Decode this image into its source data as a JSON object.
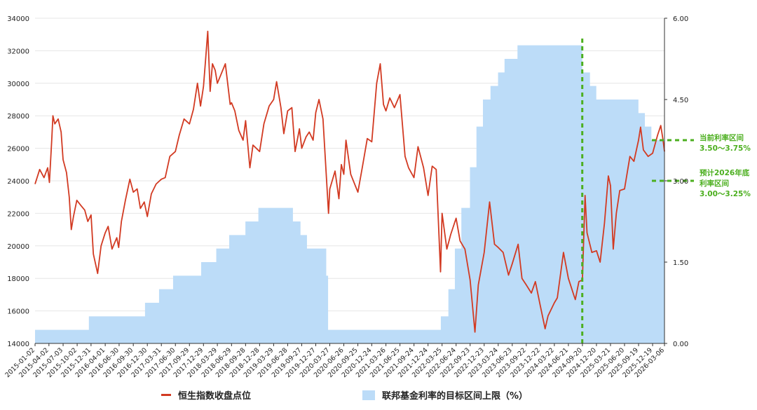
{
  "chart_data": {
    "type": "line",
    "title": "",
    "x_range": [
      "2015-01-02",
      "2026-03-06"
    ],
    "x_ticks": [
      "2015-01-02",
      "2015-04-02",
      "2015-07-03",
      "2015-10-02",
      "2015-12-31",
      "2016-04-01",
      "2016-06-30",
      "2016-09-30",
      "2016-12-30",
      "2017-03-31",
      "2017-06-30",
      "2017-09-29",
      "2017-12-29",
      "2018-03-29",
      "2018-06-29",
      "2018-09-28",
      "2018-12-28",
      "2019-03-29",
      "2019-06-28",
      "2019-09-27",
      "2019-12-27",
      "2020-03-27",
      "2020-06-26",
      "2020-09-25",
      "2020-12-24",
      "2021-03-26",
      "2021-06-25",
      "2021-09-24",
      "2021-12-24",
      "2022-03-25",
      "2022-06-24",
      "2022-09-23",
      "2022-12-23",
      "2023-03-24",
      "2023-06-23",
      "2023-09-22",
      "2023-12-22",
      "2024-03-22",
      "2024-06-21",
      "2024-09-20",
      "2024-12-20",
      "2025-03-21",
      "2025-06-20",
      "2025-09-19",
      "2025-12-19",
      "2026-03-06"
    ],
    "y_left": {
      "min": 14000,
      "max": 34000,
      "ticks": [
        "14000",
        "16000",
        "18000",
        "20000",
        "22000",
        "24000",
        "26000",
        "28000",
        "30000",
        "32000",
        "34000"
      ]
    },
    "y_right": {
      "min": 0,
      "max": 6,
      "ticks": [
        "0.00",
        "1.50",
        "3.00",
        "4.50",
        "6.00"
      ]
    },
    "grid": "horizontal",
    "legend_position": "bottom",
    "series": [
      {
        "name": "恒生指数收盘点位",
        "kind": "line",
        "axis": "left",
        "color": "#d23a22",
        "points": [
          [
            "2015-01-02",
            23800
          ],
          [
            "2015-02-01",
            24700
          ],
          [
            "2015-03-01",
            24200
          ],
          [
            "2015-03-25",
            24800
          ],
          [
            "2015-04-05",
            23900
          ],
          [
            "2015-04-20",
            26500
          ],
          [
            "2015-04-28",
            28000
          ],
          [
            "2015-05-10",
            27500
          ],
          [
            "2015-06-01",
            27800
          ],
          [
            "2015-06-20",
            27000
          ],
          [
            "2015-07-03",
            25300
          ],
          [
            "2015-07-25",
            24500
          ],
          [
            "2015-08-12",
            23000
          ],
          [
            "2015-08-25",
            21000
          ],
          [
            "2015-09-08",
            21800
          ],
          [
            "2015-09-30",
            22800
          ],
          [
            "2015-10-25",
            22500
          ],
          [
            "2015-11-20",
            22200
          ],
          [
            "2015-12-10",
            21500
          ],
          [
            "2015-12-31",
            21900
          ],
          [
            "2016-01-15",
            19500
          ],
          [
            "2016-02-12",
            18300
          ],
          [
            "2016-03-05",
            20000
          ],
          [
            "2016-04-01",
            20800
          ],
          [
            "2016-04-20",
            21200
          ],
          [
            "2016-05-15",
            19800
          ],
          [
            "2016-06-15",
            20500
          ],
          [
            "2016-06-27",
            19900
          ],
          [
            "2016-07-15",
            21500
          ],
          [
            "2016-08-10",
            22800
          ],
          [
            "2016-09-08",
            24100
          ],
          [
            "2016-09-30",
            23300
          ],
          [
            "2016-10-25",
            23500
          ],
          [
            "2016-11-15",
            22300
          ],
          [
            "2016-12-10",
            22700
          ],
          [
            "2016-12-30",
            21800
          ],
          [
            "2017-01-25",
            23200
          ],
          [
            "2017-02-25",
            23800
          ],
          [
            "2017-03-31",
            24100
          ],
          [
            "2017-04-25",
            24200
          ],
          [
            "2017-05-25",
            25500
          ],
          [
            "2017-06-30",
            25800
          ],
          [
            "2017-07-25",
            26800
          ],
          [
            "2017-08-25",
            27800
          ],
          [
            "2017-09-29",
            27500
          ],
          [
            "2017-10-25",
            28400
          ],
          [
            "2017-11-20",
            30000
          ],
          [
            "2017-12-10",
            28600
          ],
          [
            "2017-12-29",
            29800
          ],
          [
            "2018-01-12",
            31500
          ],
          [
            "2018-01-26",
            33200
          ],
          [
            "2018-02-10",
            29500
          ],
          [
            "2018-02-25",
            31200
          ],
          [
            "2018-03-15",
            30800
          ],
          [
            "2018-03-29",
            30000
          ],
          [
            "2018-04-20",
            30500
          ],
          [
            "2018-05-20",
            31200
          ],
          [
            "2018-06-20",
            28700
          ],
          [
            "2018-06-29",
            28800
          ],
          [
            "2018-07-20",
            28300
          ],
          [
            "2018-08-15",
            27100
          ],
          [
            "2018-09-12",
            26500
          ],
          [
            "2018-09-28",
            27700
          ],
          [
            "2018-10-26",
            24800
          ],
          [
            "2018-11-15",
            26200
          ],
          [
            "2018-12-28",
            25800
          ],
          [
            "2019-01-25",
            27500
          ],
          [
            "2019-02-28",
            28600
          ],
          [
            "2019-03-29",
            29000
          ],
          [
            "2019-04-17",
            30100
          ],
          [
            "2019-05-15",
            28500
          ],
          [
            "2019-06-03",
            26900
          ],
          [
            "2019-06-28",
            28300
          ],
          [
            "2019-07-25",
            28500
          ],
          [
            "2019-08-15",
            25800
          ],
          [
            "2019-09-12",
            27200
          ],
          [
            "2019-09-27",
            26000
          ],
          [
            "2019-10-25",
            26700
          ],
          [
            "2019-11-15",
            27000
          ],
          [
            "2019-12-10",
            26500
          ],
          [
            "2019-12-27",
            28200
          ],
          [
            "2020-01-17",
            29000
          ],
          [
            "2020-02-12",
            27800
          ],
          [
            "2020-03-19",
            22000
          ],
          [
            "2020-03-27",
            23500
          ],
          [
            "2020-04-30",
            24600
          ],
          [
            "2020-05-25",
            22900
          ],
          [
            "2020-06-10",
            25000
          ],
          [
            "2020-06-26",
            24400
          ],
          [
            "2020-07-10",
            26500
          ],
          [
            "2020-08-10",
            24400
          ],
          [
            "2020-09-25",
            23300
          ],
          [
            "2020-10-25",
            24900
          ],
          [
            "2020-11-25",
            26600
          ],
          [
            "2020-12-24",
            26400
          ],
          [
            "2021-01-25",
            30000
          ],
          [
            "2021-02-17",
            31200
          ],
          [
            "2021-03-10",
            28700
          ],
          [
            "2021-03-26",
            28300
          ],
          [
            "2021-04-20",
            29100
          ],
          [
            "2021-05-20",
            28500
          ],
          [
            "2021-06-25",
            29300
          ],
          [
            "2021-07-28",
            25500
          ],
          [
            "2021-08-20",
            24800
          ],
          [
            "2021-09-24",
            24200
          ],
          [
            "2021-10-20",
            26100
          ],
          [
            "2021-11-25",
            24800
          ],
          [
            "2021-12-24",
            23100
          ],
          [
            "2022-01-20",
            24900
          ],
          [
            "2022-02-15",
            24700
          ],
          [
            "2022-03-15",
            18400
          ],
          [
            "2022-03-25",
            22000
          ],
          [
            "2022-04-25",
            19800
          ],
          [
            "2022-05-20",
            20700
          ],
          [
            "2022-06-24",
            21700
          ],
          [
            "2022-07-20",
            20300
          ],
          [
            "2022-08-20",
            19800
          ],
          [
            "2022-09-23",
            17900
          ],
          [
            "2022-10-24",
            14700
          ],
          [
            "2022-11-15",
            17600
          ],
          [
            "2022-12-23",
            19600
          ],
          [
            "2023-01-27",
            22700
          ],
          [
            "2023-02-28",
            20100
          ],
          [
            "2023-03-24",
            19900
          ],
          [
            "2023-04-25",
            19600
          ],
          [
            "2023-05-30",
            18200
          ],
          [
            "2023-06-23",
            18900
          ],
          [
            "2023-07-31",
            20100
          ],
          [
            "2023-08-25",
            18000
          ],
          [
            "2023-09-22",
            17600
          ],
          [
            "2023-10-25",
            17100
          ],
          [
            "2023-11-20",
            17800
          ],
          [
            "2023-12-22",
            16300
          ],
          [
            "2024-01-22",
            14900
          ],
          [
            "2024-02-10",
            15700
          ],
          [
            "2024-03-22",
            16500
          ],
          [
            "2024-04-10",
            16800
          ],
          [
            "2024-05-20",
            19600
          ],
          [
            "2024-06-21",
            18000
          ],
          [
            "2024-07-25",
            17000
          ],
          [
            "2024-08-05",
            16700
          ],
          [
            "2024-08-28",
            17800
          ],
          [
            "2024-09-20",
            17900
          ],
          [
            "2024-10-07",
            23100
          ],
          [
            "2024-10-20",
            20800
          ],
          [
            "2024-11-20",
            19600
          ],
          [
            "2024-12-20",
            19700
          ],
          [
            "2025-01-13",
            19000
          ],
          [
            "2025-02-10",
            21400
          ],
          [
            "2025-03-07",
            24300
          ],
          [
            "2025-03-21",
            23700
          ],
          [
            "2025-04-08",
            19800
          ],
          [
            "2025-04-28",
            22000
          ],
          [
            "2025-05-20",
            23400
          ],
          [
            "2025-06-20",
            23500
          ],
          [
            "2025-07-25",
            25500
          ],
          [
            "2025-08-20",
            25200
          ],
          [
            "2025-09-19",
            26500
          ],
          [
            "2025-10-02",
            27300
          ],
          [
            "2025-10-20",
            25900
          ],
          [
            "2025-11-20",
            25500
          ],
          [
            "2025-12-19",
            25700
          ],
          [
            "2026-01-20",
            26800
          ],
          [
            "2026-02-10",
            27400
          ],
          [
            "2026-02-25",
            26500
          ],
          [
            "2026-03-06",
            25800
          ]
        ]
      },
      {
        "name": "联邦基金利率的目标区间上限（%）",
        "kind": "area",
        "axis": "right",
        "color": "#bcdcf8",
        "steps": [
          [
            "2015-01-02",
            0.25
          ],
          [
            "2015-12-17",
            0.5
          ],
          [
            "2016-12-15",
            0.75
          ],
          [
            "2017-03-16",
            1.0
          ],
          [
            "2017-06-15",
            1.25
          ],
          [
            "2017-12-14",
            1.5
          ],
          [
            "2018-03-22",
            1.75
          ],
          [
            "2018-06-14",
            2.0
          ],
          [
            "2018-09-27",
            2.25
          ],
          [
            "2018-12-20",
            2.5
          ],
          [
            "2019-08-01",
            2.25
          ],
          [
            "2019-09-19",
            2.0
          ],
          [
            "2019-10-31",
            1.75
          ],
          [
            "2020-03-04",
            1.25
          ],
          [
            "2020-03-16",
            0.25
          ],
          [
            "2022-03-17",
            0.5
          ],
          [
            "2022-05-05",
            1.0
          ],
          [
            "2022-06-16",
            1.75
          ],
          [
            "2022-07-28",
            2.5
          ],
          [
            "2022-09-22",
            3.25
          ],
          [
            "2022-11-03",
            4.0
          ],
          [
            "2022-12-15",
            4.5
          ],
          [
            "2023-02-02",
            4.75
          ],
          [
            "2023-03-23",
            5.0
          ],
          [
            "2023-05-04",
            5.25
          ],
          [
            "2023-07-27",
            5.5
          ],
          [
            "2024-09-19",
            5.0
          ],
          [
            "2024-11-08",
            4.75
          ],
          [
            "2024-12-19",
            4.5
          ],
          [
            "2025-09-18",
            4.25
          ],
          [
            "2025-10-30",
            4.0
          ],
          [
            "2025-12-11",
            3.75
          ],
          [
            "2026-03-06",
            3.75
          ]
        ]
      }
    ],
    "annotations": {
      "vertical_line_date": "2024-09-19",
      "current_rate_value": 3.75,
      "current_rate_label_1": "当前利率区间",
      "current_rate_label_2": "3.50～3.75%",
      "forecast_rate_value": 3.0,
      "forecast_label_1": "预计2026年底",
      "forecast_label_2": "利率区间",
      "forecast_label_3": "3.00～3.25%",
      "color": "#4caf1f"
    }
  },
  "legend": {
    "hsi_label": "恒生指数收盘点位",
    "rate_label": "联邦基金利率的目标区间上限（%）"
  }
}
